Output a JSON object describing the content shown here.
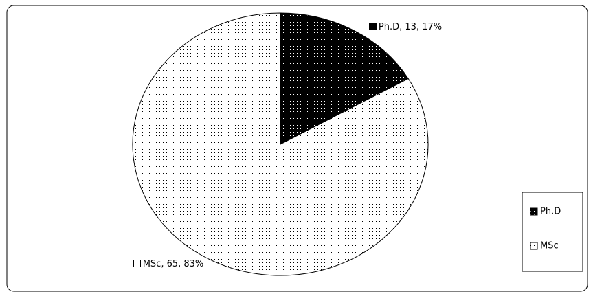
{
  "chart_data": {
    "type": "pie",
    "categories": [
      "Ph.D",
      "MSc"
    ],
    "values": [
      13,
      65
    ],
    "value_labels": [
      "Ph.D, 13, 17%",
      "MSc, 65, 83%"
    ],
    "colors": [
      "#000000",
      "#ffffff"
    ],
    "legend": "right"
  }
}
